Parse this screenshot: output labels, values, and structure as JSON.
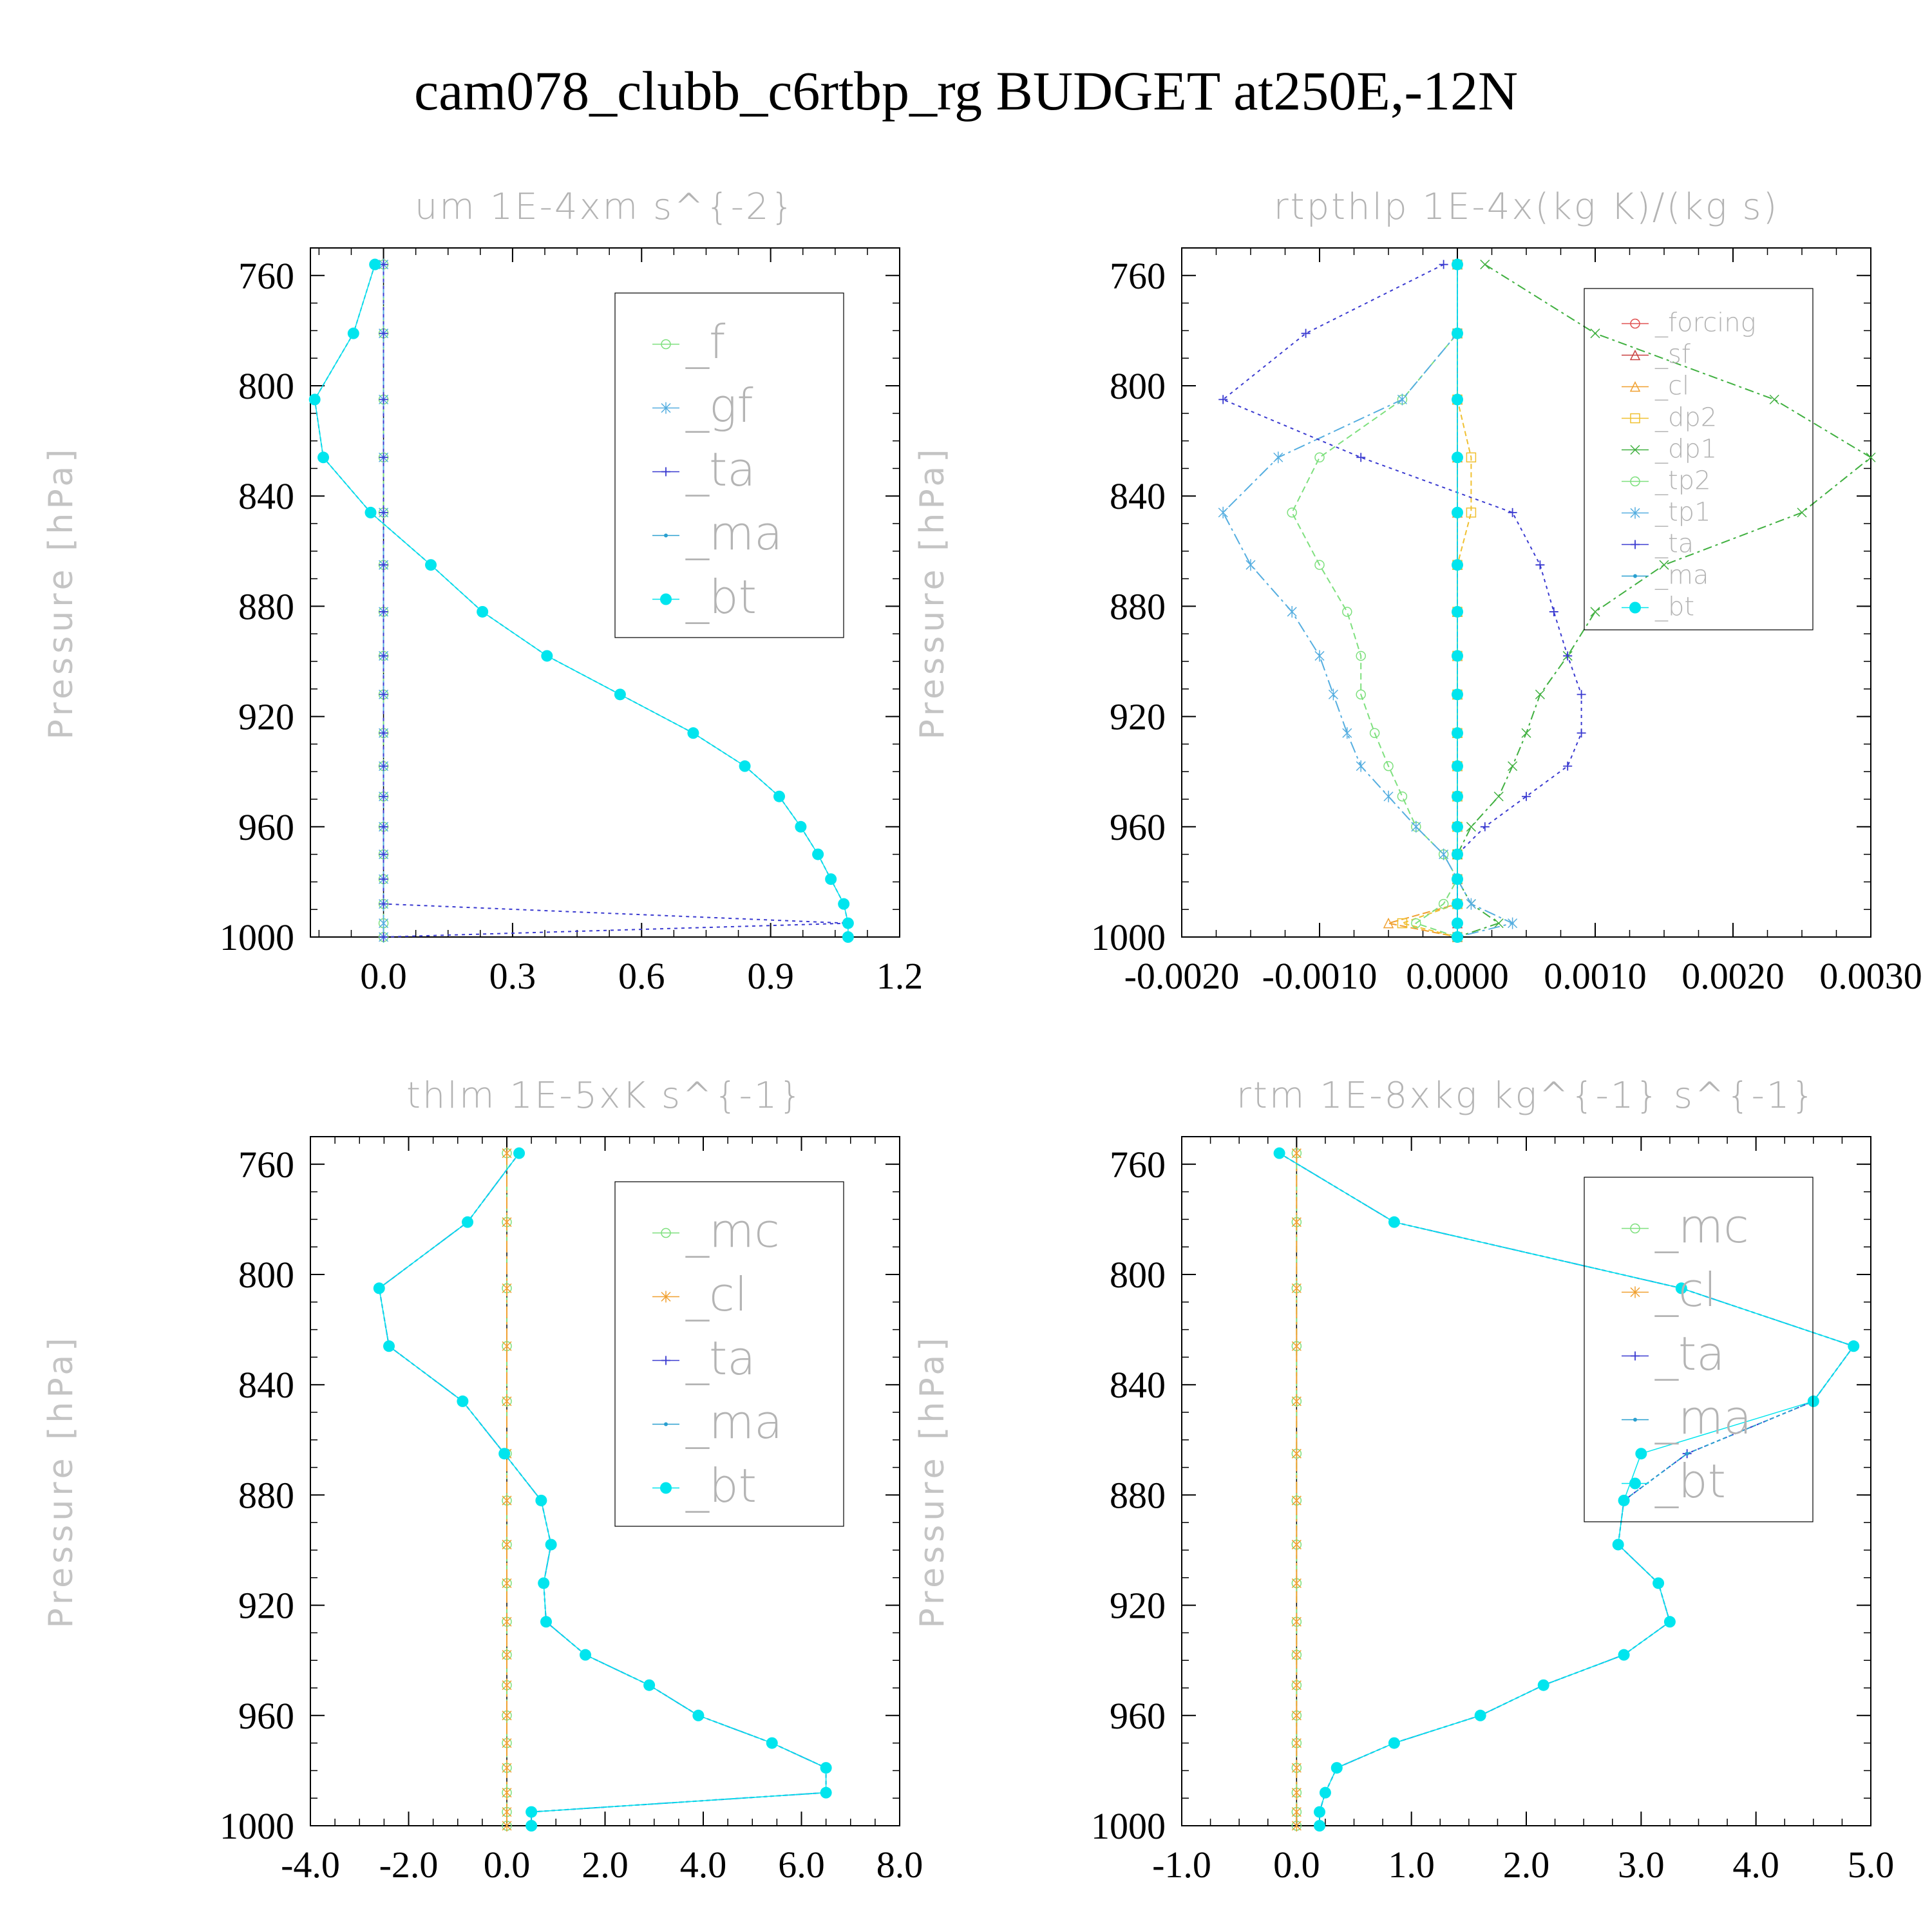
{
  "title": "cam078_clubb_c6rtbp_rg  BUDGET at250E,-12N",
  "colors": {
    "_f": "#7ee07e",
    "_gf": "#55aee0",
    "_ta": "#3a3ad0",
    "_ma": "#2aa0d0",
    "_bt": "#00e5ee",
    "_forcing": "#e05050",
    "_sf": "#c84040",
    "_cl": "#f0a030",
    "_dp2": "#f0c030",
    "_dp1": "#40b040",
    "_tp2": "#7ee07e",
    "_tp1": "#55aee0",
    "_mc": "#7ee07e"
  },
  "chart_data": [
    {
      "type": "line",
      "title": "um   1E-4xm s^{-2}",
      "ylabel": "Pressure [hPa]",
      "y_reversed": true,
      "xlim": [
        -0.17,
        1.2
      ],
      "ylim": [
        750,
        1000
      ],
      "xticks": [
        "0.0",
        "0.3",
        "0.6",
        "0.9",
        "1.2"
      ],
      "xtick_values": [
        0,
        0.3,
        0.6,
        0.9,
        1.2
      ],
      "yticks": [
        "760",
        "800",
        "840",
        "880",
        "920",
        "960",
        "1000"
      ],
      "yticks_values": [
        760,
        800,
        840,
        880,
        920,
        960,
        1000
      ],
      "legend_font": 72,
      "legend": [
        "_f",
        "_gf",
        "_ta",
        "_ma",
        "_bt"
      ],
      "y": [
        756,
        781,
        805,
        826,
        846,
        865,
        882,
        898,
        912,
        926,
        938,
        949,
        960,
        970,
        979,
        988,
        995,
        1000
      ],
      "series": [
        {
          "name": "_f",
          "style": "circle",
          "values": [
            0,
            0,
            0,
            0,
            0,
            0,
            0,
            0,
            0,
            0,
            0,
            0,
            0,
            0,
            0,
            0,
            0,
            0
          ]
        },
        {
          "name": "_gf",
          "style": "star",
          "values": [
            0,
            0,
            0,
            0,
            0,
            0,
            0,
            0,
            0,
            0,
            0,
            0,
            0,
            0,
            0,
            0,
            0,
            0
          ]
        },
        {
          "name": "_ta",
          "style": "plus",
          "values": [
            0,
            0,
            0,
            0,
            0,
            0,
            0,
            0,
            0,
            0,
            0,
            0,
            0,
            0,
            0,
            0,
            1.08,
            0
          ]
        },
        {
          "name": "_ma",
          "style": "dot",
          "values": [
            -0.02,
            -0.07,
            -0.16,
            -0.14,
            -0.03,
            0.11,
            0.23,
            0.38,
            0.55,
            0.72,
            0.84,
            0.92,
            0.97,
            1.01,
            1.04,
            1.07,
            1.08,
            1.08
          ]
        },
        {
          "name": "_bt",
          "style": "bigdot",
          "values": [
            -0.02,
            -0.07,
            -0.16,
            -0.14,
            -0.03,
            0.11,
            0.23,
            0.38,
            0.55,
            0.72,
            0.84,
            0.92,
            0.97,
            1.01,
            1.04,
            1.07,
            1.08,
            1.08
          ]
        }
      ]
    },
    {
      "type": "line",
      "title": "rtpthlp   1E-4x(kg K)/(kg s)",
      "ylabel": "Pressure [hPa]",
      "y_reversed": true,
      "xlim": [
        -0.002,
        0.003
      ],
      "ylim": [
        750,
        1000
      ],
      "xticks": [
        "-0.0020",
        "-0.0010",
        "0.0000",
        "0.0010",
        "0.0020",
        "0.0030"
      ],
      "xtick_values": [
        -0.002,
        -0.001,
        0,
        0.001,
        0.002,
        0.003
      ],
      "yticks": [
        "760",
        "800",
        "840",
        "880",
        "920",
        "960",
        "1000"
      ],
      "yticks_values": [
        760,
        800,
        840,
        880,
        920,
        960,
        1000
      ],
      "legend_font": 40,
      "legend": [
        "_forcing",
        "_sf",
        "_cl",
        "_dp2",
        "_dp1",
        "_tp2",
        "_tp1",
        "_ta",
        "_ma",
        "_bt"
      ],
      "y": [
        756,
        781,
        805,
        826,
        846,
        865,
        882,
        898,
        912,
        926,
        938,
        949,
        960,
        970,
        979,
        988,
        995,
        1000
      ],
      "series": [
        {
          "name": "_forcing",
          "style": "circle",
          "values": [
            0,
            0,
            0,
            0,
            0,
            0,
            0,
            0,
            0,
            0,
            0,
            0,
            0,
            0,
            0,
            0,
            0,
            0
          ]
        },
        {
          "name": "_sf",
          "style": "tri",
          "values": [
            0,
            0,
            0,
            0,
            0,
            0,
            0,
            0,
            0,
            0,
            0,
            0,
            0,
            0,
            0,
            0,
            0,
            0
          ]
        },
        {
          "name": "_cl",
          "style": "tri",
          "values": [
            0,
            0,
            0,
            0,
            0,
            0,
            0,
            0,
            0,
            0,
            0,
            0,
            0,
            0,
            0,
            0,
            -0.0005,
            0
          ]
        },
        {
          "name": "_dp2",
          "style": "square",
          "values": [
            0,
            0,
            0,
            0.0001,
            0.0001,
            0,
            0,
            0,
            0,
            0,
            0,
            0,
            0,
            0,
            0,
            0,
            -0.0004,
            0
          ]
        },
        {
          "name": "_dp1",
          "style": "cross",
          "values": [
            0.0002,
            0.001,
            0.0023,
            0.003,
            0.0025,
            0.0015,
            0.001,
            0.0008,
            0.0006,
            0.0005,
            0.0004,
            0.0003,
            0.0001,
            0,
            0,
            0.0001,
            0.0003,
            0
          ]
        },
        {
          "name": "_tp2",
          "style": "circle",
          "values": [
            0,
            0,
            -0.0004,
            -0.001,
            -0.0012,
            -0.001,
            -0.0008,
            -0.0007,
            -0.0007,
            -0.0006,
            -0.0005,
            -0.0004,
            -0.0003,
            -0.0001,
            0,
            -0.0001,
            -0.0003,
            0
          ]
        },
        {
          "name": "_tp1",
          "style": "star",
          "values": [
            0,
            0,
            -0.0004,
            -0.0013,
            -0.0017,
            -0.0015,
            -0.0012,
            -0.001,
            -0.0009,
            -0.0008,
            -0.0007,
            -0.0005,
            -0.0003,
            -0.0001,
            0,
            0.0001,
            0.0004,
            0
          ]
        },
        {
          "name": "_ta",
          "style": "plus",
          "values": [
            -0.0001,
            -0.0011,
            -0.0017,
            -0.0007,
            0.0004,
            0.0006,
            0.0007,
            0.0008,
            0.0009,
            0.0009,
            0.0008,
            0.0005,
            0.0002,
            0,
            0,
            0,
            0,
            0
          ]
        },
        {
          "name": "_ma",
          "style": "dot",
          "values": [
            0,
            0,
            0,
            0,
            0,
            0,
            0,
            0,
            0,
            0,
            0,
            0,
            0,
            0,
            0,
            0,
            0,
            0
          ]
        },
        {
          "name": "_bt",
          "style": "bigdot",
          "values": [
            0,
            0,
            0,
            0,
            0,
            0,
            0,
            0,
            0,
            0,
            0,
            0,
            0,
            0,
            0,
            0,
            0,
            0
          ]
        }
      ]
    },
    {
      "type": "line",
      "title": "thlm   1E-5xK s^{-1}",
      "ylabel": "Pressure [hPa]",
      "y_reversed": true,
      "xlim": [
        -4,
        8
      ],
      "ylim": [
        750,
        1000
      ],
      "xticks": [
        "-4.0",
        "-2.0",
        "0.0",
        "2.0",
        "4.0",
        "6.0",
        "8.0"
      ],
      "xtick_values": [
        -4,
        -2,
        0,
        2,
        4,
        6,
        8
      ],
      "yticks": [
        "760",
        "800",
        "840",
        "880",
        "920",
        "960",
        "1000"
      ],
      "yticks_values": [
        760,
        800,
        840,
        880,
        920,
        960,
        1000
      ],
      "legend_font": 72,
      "legend": [
        "_mc",
        "_cl",
        "_ta",
        "_ma",
        "_bt"
      ],
      "y": [
        756,
        781,
        805,
        826,
        846,
        865,
        882,
        898,
        912,
        926,
        938,
        949,
        960,
        970,
        979,
        988,
        995,
        1000
      ],
      "series": [
        {
          "name": "_mc",
          "style": "circle",
          "values": [
            0,
            0,
            0,
            0,
            0,
            0,
            0,
            0,
            0,
            0,
            0,
            0,
            0,
            0,
            0,
            0,
            0,
            0
          ]
        },
        {
          "name": "_cl",
          "style": "star",
          "values": [
            0,
            0,
            0,
            0,
            0,
            0,
            0,
            0,
            0,
            0,
            0,
            0,
            0,
            0,
            0,
            0,
            0,
            0
          ]
        },
        {
          "name": "_ta",
          "style": "plus",
          "values": [
            0.25,
            -0.8,
            -2.6,
            -2.4,
            -0.9,
            -0.05,
            0.7,
            0.9,
            0.75,
            0.8,
            1.6,
            2.9,
            3.9,
            5.4,
            6.5,
            6.5,
            0.5,
            0.5
          ]
        },
        {
          "name": "_ma",
          "style": "dot",
          "values": [
            0.25,
            -0.8,
            -2.6,
            -2.4,
            -0.9,
            -0.05,
            0.7,
            0.9,
            0.75,
            0.8,
            1.6,
            2.9,
            3.9,
            5.4,
            6.5,
            6.5,
            0.5,
            0.5
          ]
        },
        {
          "name": "_bt",
          "style": "bigdot",
          "values": [
            0.25,
            -0.8,
            -2.6,
            -2.4,
            -0.9,
            -0.05,
            0.7,
            0.9,
            0.75,
            0.8,
            1.6,
            2.9,
            3.9,
            5.4,
            6.5,
            6.5,
            0.5,
            0.5
          ]
        }
      ]
    },
    {
      "type": "line",
      "title": "rtm   1E-8xkg kg^{-1} s^{-1}",
      "ylabel": "Pressure [hPa]",
      "y_reversed": true,
      "xlim": [
        -1,
        5
      ],
      "ylim": [
        750,
        1000
      ],
      "xticks": [
        "-1.0",
        "0.0",
        "1.0",
        "2.0",
        "3.0",
        "4.0",
        "5.0"
      ],
      "xtick_values": [
        -1,
        0,
        1,
        2,
        3,
        4,
        5
      ],
      "yticks": [
        "760",
        "800",
        "840",
        "880",
        "920",
        "960",
        "1000"
      ],
      "yticks_values": [
        760,
        800,
        840,
        880,
        920,
        960,
        1000
      ],
      "legend_font": 72,
      "legend": [
        "_mc",
        "_cl",
        "_ta",
        "_ma",
        "_bt"
      ],
      "y": [
        756,
        781,
        805,
        826,
        846,
        865,
        882,
        898,
        912,
        926,
        938,
        949,
        960,
        970,
        979,
        988,
        995,
        1000
      ],
      "series": [
        {
          "name": "_mc",
          "style": "circle",
          "values": [
            0,
            0,
            0,
            0,
            0,
            0,
            0,
            0,
            0,
            0,
            0,
            0,
            0,
            0,
            0,
            0,
            0,
            0
          ]
        },
        {
          "name": "_cl",
          "style": "star",
          "values": [
            0,
            0,
            0,
            0,
            0,
            0,
            0,
            0,
            0,
            0,
            0,
            0,
            0,
            0,
            0,
            0,
            0,
            0
          ]
        },
        {
          "name": "_ta",
          "style": "plus",
          "values": [
            -0.15,
            0.85,
            3.35,
            4.85,
            4.5,
            3.4,
            2.85,
            2.8,
            3.15,
            3.25,
            2.85,
            2.15,
            1.6,
            0.85,
            0.35,
            0.25,
            0.2,
            0.2
          ]
        },
        {
          "name": "_ma",
          "style": "dot",
          "values": [
            -0.15,
            0.85,
            3.35,
            4.85,
            4.5,
            3.4,
            2.85,
            2.8,
            3.15,
            3.25,
            2.85,
            2.15,
            1.6,
            0.85,
            0.35,
            0.25,
            0.2,
            0.2
          ]
        },
        {
          "name": "_bt",
          "style": "bigdot",
          "values": [
            -0.15,
            0.85,
            3.35,
            4.85,
            4.5,
            3.0,
            2.85,
            2.8,
            3.15,
            3.25,
            2.85,
            2.15,
            1.6,
            0.85,
            0.35,
            0.25,
            0.2,
            0.2
          ]
        }
      ]
    }
  ]
}
